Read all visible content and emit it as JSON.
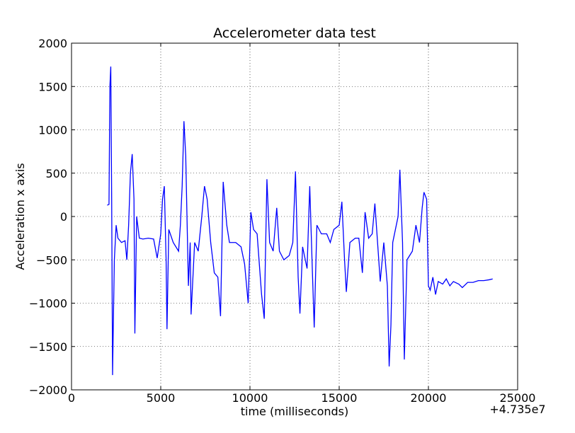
{
  "chart_data": {
    "type": "line",
    "title": "Accelerometer data test",
    "x_label": "time (milliseconds)",
    "y_label": "Acceleration x axis",
    "x_offset_label": "+4.735e7",
    "xlim": [
      0,
      25000
    ],
    "xticks": [
      0,
      5000,
      10000,
      15000,
      20000,
      25000
    ],
    "ylim": [
      -2000,
      2000
    ],
    "yticks": [
      {
        "value": -2000,
        "label": "−2000"
      },
      {
        "value": -1500,
        "label": "−1500"
      },
      {
        "value": -1000,
        "label": "−1000"
      },
      {
        "value": -500,
        "label": "−500"
      },
      0,
      500,
      1000,
      1500,
      2000
    ],
    "grid": true,
    "series": [
      {
        "color": "#0000ff",
        "x": [
          2000,
          2100,
          2150,
          2200,
          2250,
          2300,
          2350,
          2400,
          2500,
          2600,
          2800,
          3000,
          3100,
          3200,
          3300,
          3400,
          3500,
          3550,
          3650,
          3800,
          4000,
          4300,
          4600,
          4800,
          5000,
          5100,
          5200,
          5300,
          5350,
          5450,
          5700,
          6000,
          6100,
          6200,
          6300,
          6400,
          6550,
          6650,
          6700,
          6900,
          7100,
          7300,
          7450,
          7600,
          7800,
          8000,
          8200,
          8350,
          8500,
          8700,
          8850,
          9200,
          9500,
          9700,
          9900,
          10050,
          10200,
          10400,
          10650,
          10800,
          10950,
          11100,
          11300,
          11500,
          11650,
          11900,
          12200,
          12400,
          12550,
          12700,
          12800,
          12950,
          13200,
          13350,
          13500,
          13600,
          13750,
          14000,
          14300,
          14500,
          14700,
          15000,
          15150,
          15300,
          15400,
          15600,
          15900,
          16100,
          16300,
          16450,
          16650,
          16850,
          17000,
          17150,
          17300,
          17500,
          17700,
          17800,
          17900,
          18000,
          18300,
          18400,
          18550,
          18650,
          18800,
          19100,
          19300,
          19500,
          19650,
          19750,
          19900,
          20000,
          20100,
          20250,
          20400,
          20550,
          20800,
          21000,
          21200,
          21400,
          21700,
          21900,
          22200,
          22500,
          22800,
          23100,
          23400,
          23600
        ],
        "values": [
          130,
          140,
          1500,
          1730,
          200,
          -1830,
          -1150,
          -500,
          -100,
          -250,
          -300,
          -280,
          -500,
          -100,
          500,
          720,
          200,
          -1350,
          0,
          -250,
          -260,
          -250,
          -260,
          -480,
          -200,
          200,
          350,
          -500,
          -1300,
          -150,
          -300,
          -400,
          -100,
          350,
          1100,
          700,
          -800,
          -300,
          -1130,
          -300,
          -400,
          0,
          350,
          200,
          -300,
          -650,
          -700,
          -1150,
          400,
          -100,
          -300,
          -300,
          -350,
          -550,
          -1000,
          50,
          -150,
          -200,
          -900,
          -1180,
          430,
          -300,
          -400,
          100,
          -400,
          -500,
          -450,
          -300,
          520,
          -700,
          -1120,
          -350,
          -600,
          350,
          -650,
          -1280,
          -100,
          -200,
          -200,
          -300,
          -150,
          -100,
          170,
          -500,
          -870,
          -300,
          -250,
          -250,
          -650,
          50,
          -250,
          -200,
          150,
          -300,
          -750,
          -300,
          -800,
          -1730,
          -1250,
          -300,
          0,
          540,
          -300,
          -1650,
          -500,
          -400,
          -100,
          -300,
          100,
          280,
          200,
          -800,
          -850,
          -700,
          -900,
          -750,
          -780,
          -720,
          -800,
          -750,
          -780,
          -820,
          -760,
          -760,
          -740,
          -740,
          -730,
          -720
        ]
      }
    ]
  }
}
